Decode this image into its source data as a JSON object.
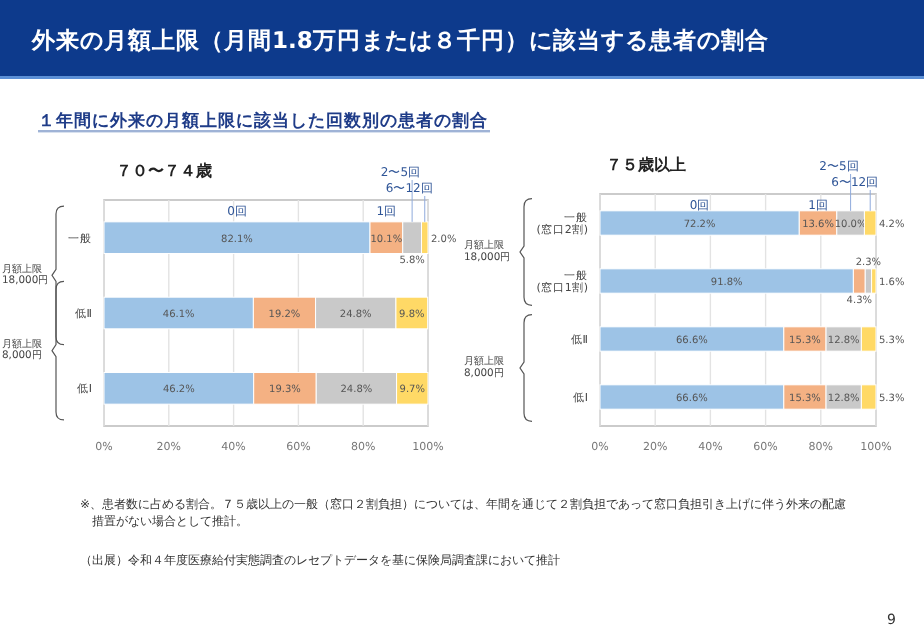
{
  "chart_data": [
    {
      "type": "bar",
      "orientation": "horizontal",
      "stacked": true,
      "title": "７０〜７４歳",
      "categories": [
        "一般",
        "低Ⅱ",
        "低Ⅰ"
      ],
      "series": [
        {
          "name": "0回",
          "color": "#9dc3e6",
          "values": [
            82.1,
            46.1,
            46.2
          ],
          "value_labels": [
            "82.1%",
            "46.1%",
            "46.2%"
          ]
        },
        {
          "name": "1回",
          "color": "#f4b183",
          "values": [
            10.1,
            19.2,
            19.3
          ],
          "value_labels": [
            "10.1%",
            "19.2%",
            "19.3%"
          ]
        },
        {
          "name": "2〜5回",
          "color": "#c9c9c9",
          "values": [
            5.8,
            24.8,
            24.8
          ],
          "value_labels": [
            "5.8%",
            "24.8%",
            "24.8%"
          ]
        },
        {
          "name": "6〜12回",
          "color": "#ffd966",
          "values": [
            2.0,
            9.8,
            9.7
          ],
          "value_labels": [
            "2.0%",
            "9.8%",
            "9.7%"
          ]
        }
      ],
      "xlim": [
        0,
        100
      ],
      "xticks": [
        {
          "value": 0,
          "label": "0%"
        },
        {
          "value": 20,
          "label": "20%"
        },
        {
          "value": 40,
          "label": "40%"
        },
        {
          "value": 60,
          "label": "60%"
        },
        {
          "value": 80,
          "label": "80%"
        },
        {
          "value": 100,
          "label": "100%"
        }
      ],
      "grid": "x",
      "legend": "top",
      "annotations": [
        "外来の月額上限（月間1.8万円または８千円）に該当する患者の割合",
        "１年間に外来の月額上限に該当した回数別の患者の割合",
        "月額上限\n18,000円",
        "月額上限\n8,000円"
      ]
    },
    {
      "type": "bar",
      "orientation": "horizontal",
      "stacked": true,
      "title": "７５歳以上",
      "categories": [
        "一般\n(窓口2割)",
        "一般\n(窓口1割)",
        "低Ⅱ",
        "低Ⅰ"
      ],
      "series": [
        {
          "name": "0回",
          "color": "#9dc3e6",
          "values": [
            72.2,
            91.8,
            66.6,
            66.6
          ],
          "value_labels": [
            "72.2%",
            "91.8%",
            "66.6%",
            "66.6%"
          ]
        },
        {
          "name": "1回",
          "color": "#f4b183",
          "values": [
            13.6,
            4.3,
            15.3,
            15.3
          ],
          "value_labels": [
            "13.6%",
            "4.3%",
            "15.3%",
            "15.3%"
          ]
        },
        {
          "name": "2〜5回",
          "color": "#c9c9c9",
          "values": [
            10.0,
            2.3,
            12.8,
            12.8
          ],
          "value_labels": [
            "10.0%",
            "2.3%",
            "12.8%",
            "12.8%"
          ]
        },
        {
          "name": "6〜12回",
          "color": "#ffd966",
          "values": [
            4.2,
            1.6,
            5.3,
            5.3
          ],
          "value_labels": [
            "4.2%",
            "1.6%",
            "5.3%",
            "5.3%"
          ]
        }
      ],
      "xlim": [
        0,
        100
      ],
      "xticks": [
        {
          "value": 0,
          "label": "0%"
        },
        {
          "value": 20,
          "label": "20%"
        },
        {
          "value": 40,
          "label": "40%"
        },
        {
          "value": 60,
          "label": "60%"
        },
        {
          "value": 80,
          "label": "80%"
        },
        {
          "value": 100,
          "label": "100%"
        }
      ],
      "grid": "x",
      "legend": "top",
      "annotations": [
        "月額上限\n18,000円",
        "月額上限\n8,000円",
        "※、患者数に占める割合。７５歳以上の一般（窓口２割負担）については、年間を通じて２割負担であって窓口負担引き上げに伴う外来の配慮措置がない場合として推計。",
        "（出展）令和４年度医療給付実態調査のレセプトデータを基に保険局調査課において推計",
        "9"
      ]
    }
  ]
}
